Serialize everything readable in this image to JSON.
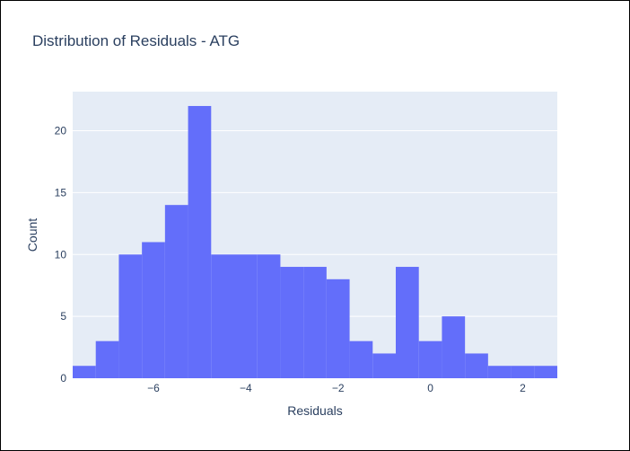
{
  "chart_data": {
    "type": "bar",
    "title": "Distribution of Residuals - ATG",
    "xlabel": "Residuals",
    "ylabel": "Count",
    "bin_width": 0.5,
    "bins": [
      {
        "start": -7.75,
        "end": -7.25,
        "count": 1
      },
      {
        "start": -7.25,
        "end": -6.75,
        "count": 3
      },
      {
        "start": -6.75,
        "end": -6.25,
        "count": 10
      },
      {
        "start": -6.25,
        "end": -5.75,
        "count": 11
      },
      {
        "start": -5.75,
        "end": -5.25,
        "count": 14
      },
      {
        "start": -5.25,
        "end": -4.75,
        "count": 22
      },
      {
        "start": -4.75,
        "end": -4.25,
        "count": 10
      },
      {
        "start": -4.25,
        "end": -3.75,
        "count": 10
      },
      {
        "start": -3.75,
        "end": -3.25,
        "count": 10
      },
      {
        "start": -3.25,
        "end": -2.75,
        "count": 9
      },
      {
        "start": -2.75,
        "end": -2.25,
        "count": 9
      },
      {
        "start": -2.25,
        "end": -1.75,
        "count": 8
      },
      {
        "start": -1.75,
        "end": -1.25,
        "count": 3
      },
      {
        "start": -1.25,
        "end": -0.75,
        "count": 2
      },
      {
        "start": -0.75,
        "end": -0.25,
        "count": 9
      },
      {
        "start": -0.25,
        "end": 0.25,
        "count": 3
      },
      {
        "start": 0.25,
        "end": 0.75,
        "count": 5
      },
      {
        "start": 0.75,
        "end": 1.25,
        "count": 2
      },
      {
        "start": 1.25,
        "end": 1.75,
        "count": 1
      },
      {
        "start": 1.75,
        "end": 2.25,
        "count": 1
      },
      {
        "start": 2.25,
        "end": 2.75,
        "count": 1
      }
    ],
    "xlim": [
      -7.75,
      2.75
    ],
    "ylim": [
      0,
      23.16
    ],
    "xticks": [
      {
        "value": -6,
        "label": "−6"
      },
      {
        "value": -4,
        "label": "−4"
      },
      {
        "value": -2,
        "label": "−2"
      },
      {
        "value": 0,
        "label": "0"
      },
      {
        "value": 2,
        "label": "2"
      }
    ],
    "yticks": [
      {
        "value": 0,
        "label": "0"
      },
      {
        "value": 5,
        "label": "5"
      },
      {
        "value": 10,
        "label": "10"
      },
      {
        "value": 15,
        "label": "15"
      },
      {
        "value": 20,
        "label": "20"
      }
    ],
    "grid": true,
    "colors": {
      "bar": "#636efa",
      "plot_bg": "#e5ecf6",
      "grid": "#ffffff",
      "text": "#2a3f5f"
    }
  }
}
